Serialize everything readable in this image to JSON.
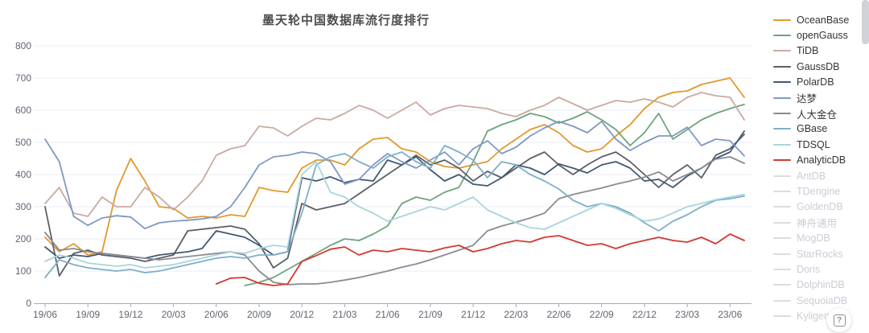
{
  "title": "墨天轮中国数据库流行度排行",
  "help_button": {
    "label": "?"
  },
  "legend": {
    "items": [
      {
        "label": "OceanBase",
        "color": "#e2992c",
        "enabled": true
      },
      {
        "label": "openGauss",
        "color": "#6fa37e",
        "enabled": true
      },
      {
        "label": "TiDB",
        "color": "#cba8a2",
        "enabled": true
      },
      {
        "label": "GaussDB",
        "color": "#5c5f66",
        "enabled": true
      },
      {
        "label": "PolarDB",
        "color": "#425972",
        "enabled": true
      },
      {
        "label": "达梦",
        "color": "#7e99c5",
        "enabled": true
      },
      {
        "label": "人大金仓",
        "color": "#8a8c93",
        "enabled": true
      },
      {
        "label": "GBase",
        "color": "#7eafc8",
        "enabled": true
      },
      {
        "label": "TDSQL",
        "color": "#a8d5dc",
        "enabled": true
      },
      {
        "label": "AnalyticDB",
        "color": "#d23a31",
        "enabled": true
      },
      {
        "label": "AntDB",
        "color": "#d9dce1",
        "enabled": false
      },
      {
        "label": "TDengine",
        "color": "#d9dce1",
        "enabled": false
      },
      {
        "label": "GoldenDB",
        "color": "#d9dce1",
        "enabled": false
      },
      {
        "label": "神舟通用",
        "color": "#d9dce1",
        "enabled": false
      },
      {
        "label": "MogDB",
        "color": "#d9dce1",
        "enabled": false
      },
      {
        "label": "StarRocks",
        "color": "#d9dce1",
        "enabled": false
      },
      {
        "label": "Doris",
        "color": "#d9dce1",
        "enabled": false
      },
      {
        "label": "DolphinDB",
        "color": "#d9dce1",
        "enabled": false
      },
      {
        "label": "SequoiaDB",
        "color": "#d9dce1",
        "enabled": false
      },
      {
        "label": "Kyligence",
        "color": "#d9dce1",
        "enabled": false
      }
    ]
  },
  "chart_data": {
    "type": "line",
    "title": "墨天轮中国数据库流行度排行",
    "n_points": 50,
    "x_axis": {
      "tick_labels": [
        "19/06",
        "19/09",
        "19/12",
        "20/03",
        "20/06",
        "20/09",
        "20/12",
        "21/03",
        "21/06",
        "21/09",
        "21/12",
        "22/03",
        "22/06",
        "22/09",
        "22/12",
        "23/03",
        "23/06"
      ],
      "tick_point_indices": [
        0,
        3,
        6,
        9,
        12,
        15,
        18,
        21,
        24,
        27,
        30,
        33,
        36,
        39,
        42,
        45,
        48
      ]
    },
    "y_axis": {
      "min": 0,
      "max": 800,
      "tick_labels": [
        "0",
        "100",
        "200",
        "300",
        "400",
        "500",
        "600",
        "700",
        "800"
      ]
    },
    "grid": true,
    "legend_position": "right",
    "series": [
      {
        "name": "OceanBase",
        "color": "#e2992c",
        "values": [
          205,
          160,
          185,
          150,
          160,
          350,
          450,
          380,
          300,
          295,
          265,
          270,
          265,
          275,
          270,
          360,
          350,
          345,
          420,
          445,
          445,
          430,
          480,
          510,
          515,
          480,
          470,
          440,
          425,
          420,
          430,
          440,
          480,
          510,
          540,
          555,
          530,
          490,
          470,
          480,
          520,
          555,
          605,
          640,
          655,
          660,
          680,
          690,
          700,
          640
        ]
      },
      {
        "name": "openGauss",
        "color": "#6fa37e",
        "values": [
          null,
          null,
          null,
          null,
          null,
          null,
          null,
          null,
          null,
          null,
          null,
          null,
          null,
          null,
          55,
          65,
          80,
          105,
          130,
          155,
          180,
          200,
          195,
          215,
          240,
          310,
          330,
          320,
          345,
          360,
          440,
          535,
          555,
          570,
          590,
          580,
          560,
          575,
          595,
          570,
          540,
          490,
          530,
          590,
          510,
          540,
          570,
          590,
          605,
          618
        ]
      },
      {
        "name": "TiDB",
        "color": "#cba8a2",
        "values": [
          310,
          360,
          280,
          270,
          330,
          300,
          300,
          360,
          330,
          290,
          330,
          380,
          460,
          480,
          490,
          550,
          545,
          520,
          550,
          575,
          570,
          590,
          615,
          600,
          575,
          600,
          625,
          585,
          605,
          615,
          610,
          605,
          590,
          580,
          600,
          615,
          640,
          620,
          600,
          615,
          630,
          625,
          635,
          625,
          610,
          640,
          655,
          645,
          640,
          570
        ]
      },
      {
        "name": "GaussDB",
        "color": "#5c5f66",
        "values": [
          300,
          85,
          155,
          165,
          150,
          145,
          140,
          130,
          140,
          150,
          225,
          230,
          235,
          240,
          230,
          185,
          110,
          140,
          310,
          290,
          300,
          310,
          340,
          370,
          400,
          430,
          460,
          430,
          445,
          420,
          380,
          410,
          390,
          420,
          450,
          470,
          430,
          400,
          430,
          455,
          470,
          440,
          400,
          360,
          400,
          430,
          390,
          460,
          480,
          525
        ]
      },
      {
        "name": "PolarDB",
        "color": "#425972",
        "values": [
          175,
          140,
          150,
          145,
          155,
          150,
          145,
          140,
          150,
          155,
          160,
          170,
          225,
          215,
          205,
          180,
          150,
          160,
          390,
          380,
          393,
          375,
          385,
          380,
          445,
          430,
          455,
          415,
          380,
          400,
          370,
          365,
          390,
          430,
          420,
          400,
          433,
          420,
          405,
          430,
          440,
          420,
          380,
          385,
          360,
          395,
          420,
          450,
          470,
          535
        ]
      },
      {
        "name": "达梦",
        "color": "#7e99c5",
        "values": [
          510,
          440,
          270,
          242,
          265,
          272,
          268,
          232,
          250,
          255,
          258,
          262,
          270,
          300,
          360,
          430,
          455,
          460,
          470,
          465,
          440,
          370,
          385,
          430,
          465,
          440,
          420,
          445,
          470,
          430,
          480,
          505,
          465,
          485,
          520,
          545,
          565,
          550,
          530,
          565,
          510,
          475,
          500,
          520,
          520,
          547,
          490,
          510,
          505,
          458
        ]
      },
      {
        "name": "人大金仓",
        "color": "#8a8c93",
        "values": [
          220,
          165,
          170,
          160,
          155,
          150,
          145,
          140,
          135,
          140,
          145,
          150,
          155,
          160,
          150,
          100,
          65,
          58,
          60,
          60,
          65,
          72,
          80,
          90,
          100,
          112,
          122,
          135,
          150,
          165,
          180,
          225,
          240,
          252,
          265,
          280,
          325,
          338,
          348,
          358,
          370,
          380,
          392,
          408,
          380,
          400,
          420,
          448,
          455,
          435
        ]
      },
      {
        "name": "GBase",
        "color": "#7eafc8",
        "values": [
          80,
          135,
          120,
          110,
          105,
          100,
          105,
          95,
          100,
          110,
          120,
          130,
          140,
          145,
          140,
          150,
          150,
          160,
          280,
          430,
          455,
          465,
          440,
          420,
          455,
          470,
          440,
          420,
          490,
          470,
          445,
          390,
          440,
          430,
          400,
          380,
          355,
          320,
          300,
          310,
          300,
          280,
          250,
          225,
          255,
          275,
          300,
          320,
          325,
          333
        ]
      },
      {
        "name": "TDSQL",
        "color": "#a8d5dc",
        "values": [
          130,
          150,
          140,
          125,
          120,
          115,
          120,
          110,
          115,
          120,
          130,
          140,
          150,
          160,
          155,
          170,
          180,
          175,
          400,
          440,
          345,
          330,
          300,
          280,
          255,
          270,
          285,
          300,
          290,
          310,
          330,
          290,
          270,
          250,
          235,
          230,
          250,
          270,
          290,
          310,
          295,
          275,
          255,
          262,
          280,
          300,
          310,
          322,
          330,
          338
        ]
      },
      {
        "name": "AnalyticDB",
        "color": "#d23a31",
        "values": [
          null,
          null,
          null,
          null,
          null,
          null,
          null,
          null,
          null,
          null,
          null,
          null,
          60,
          78,
          80,
          62,
          55,
          60,
          130,
          148,
          168,
          175,
          150,
          165,
          160,
          170,
          165,
          160,
          172,
          180,
          160,
          170,
          185,
          195,
          190,
          205,
          210,
          195,
          180,
          185,
          170,
          185,
          195,
          205,
          195,
          190,
          205,
          185,
          215,
          195
        ]
      }
    ]
  }
}
